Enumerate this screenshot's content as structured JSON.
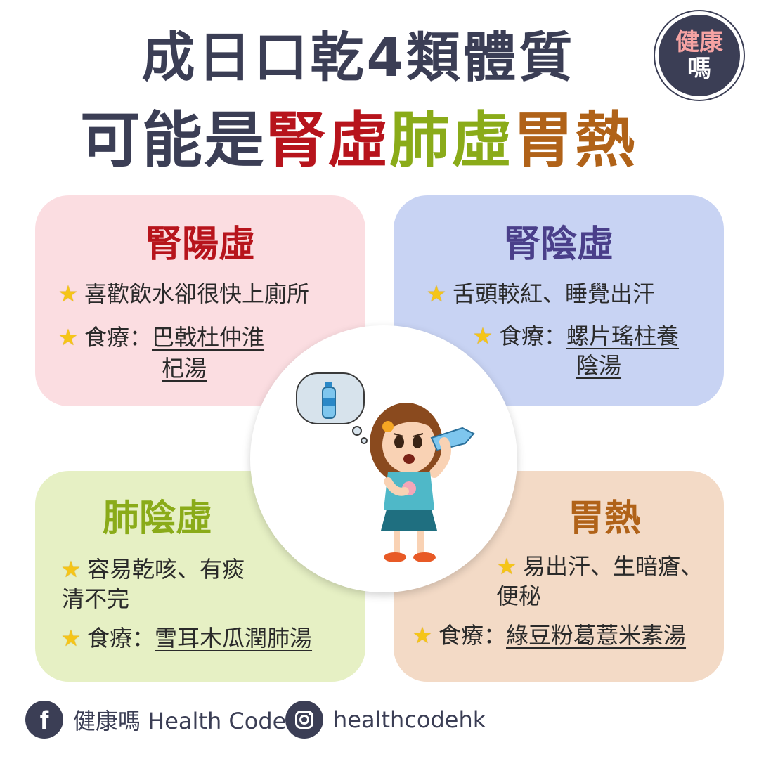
{
  "header": {
    "title_line1": "成日口乾4類體質",
    "title_line2": {
      "part1": "可能是",
      "part2": "腎虛",
      "part3": "肺虛",
      "part4": "胃熱"
    }
  },
  "logo": {
    "line1": "健康",
    "line2": "嗎"
  },
  "cards": {
    "kidney_yang": {
      "title": "腎陽虛",
      "item1": "喜歡飲水卻很快上廁所",
      "item2_label": "食療：",
      "item2_line1": "巴戟杜仲淮",
      "item2_line2": "杞湯"
    },
    "kidney_yin": {
      "title": "腎陰虛",
      "item1": "舌頭較紅、睡覺出汗",
      "item2_label": "食療：",
      "item2_line1": "螺片瑤柱養",
      "item2_line2": "陰湯"
    },
    "lung_yin": {
      "title": "肺陰虛",
      "item1_line1": "容易乾咳、有痰",
      "item1_line2": "清不完",
      "item2_label": "食療：",
      "item2_value": "雪耳木瓜潤肺湯"
    },
    "stomach_heat": {
      "title": "胃熱",
      "item1_line1": "易出汗、生暗瘡、",
      "item1_line2": "便秘",
      "item2_label": "食療：",
      "item2_value": "綠豆粉葛薏米素湯"
    }
  },
  "footer": {
    "facebook_label": "健康嗎 Health Code",
    "instagram_label": "healthcodehk"
  },
  "colors": {
    "dark": "#3b3e55",
    "red": "#b7141c",
    "green": "#8aab19",
    "brown": "#b06218",
    "purple": "#4a3f8a",
    "card_pink": "#fbdde1",
    "card_blue": "#c8d3f3",
    "card_green": "#e6f0c4",
    "card_peach": "#f3dac6"
  },
  "icons": [
    "star-icon",
    "water-bottle-icon",
    "facebook-icon",
    "instagram-icon"
  ]
}
